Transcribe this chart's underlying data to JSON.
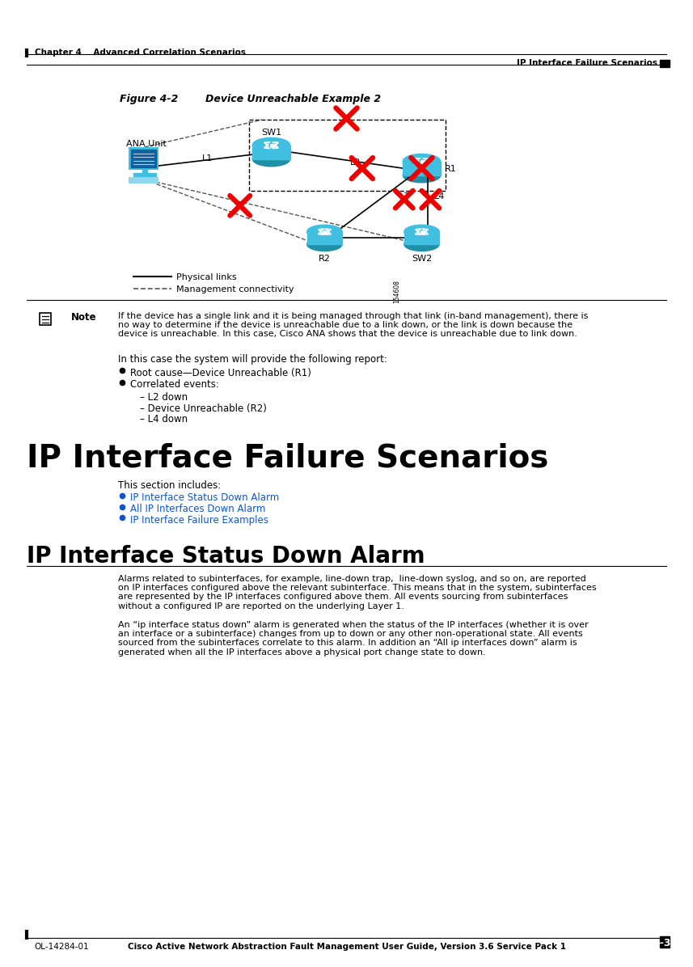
{
  "page_title_left": "Chapter 4    Advanced Correlation Scenarios",
  "page_title_right": "IP Interface Failure Scenarios",
  "figure_label": "Figure 4-2",
  "figure_title": "Device Unreachable Example 2",
  "figure_number": "154608",
  "note_text_lines": [
    "If the device has a single link and it is being managed through that link (in-band management), there is",
    "no way to determine if the device is unreachable due to a link down, or the link is down because the",
    "device is unreachable. In this case, Cisco ANA shows that the device is unreachable due to link down."
  ],
  "body_para1": "In this case the system will provide the following report:",
  "bullets_top": [
    "Root cause—Device Unreachable (R1)",
    "Correlated events:"
  ],
  "sub_bullets": [
    "L2 down",
    "Device Unreachable (R2)",
    "L4 down"
  ],
  "section_title": "IP Interface Failure Scenarios",
  "section_intro": "This section includes:",
  "section_links": [
    "IP Interface Status Down Alarm",
    "All IP Interfaces Down Alarm",
    "IP Interface Failure Examples"
  ],
  "subsection_title": "IP Interface Status Down Alarm",
  "subsection_para1_lines": [
    "Alarms related to subinterfaces, for example, line-down trap,  line-down syslog, and so on, are reported",
    "on IP interfaces configured above the relevant subinterface. This means that in the system, subinterfaces",
    "are represented by the IP interfaces configured above them. All events sourcing from subinterfaces",
    "without a configured IP are reported on the underlying Layer 1."
  ],
  "subsection_para2_lines": [
    "An “ip interface status down” alarm is generated when the status of the IP interfaces (whether it is over",
    "an interface or a subinterface) changes from up to down or any other non-operational state. All events",
    "sourced from the subinterfaces correlate to this alarm. In addition an “All ip interfaces down” alarm is",
    "generated when all the IP interfaces above a physical port change state to down."
  ],
  "footer_center": "Cisco Active Network Abstraction Fault Management User Guide, Version 3.6 Service Pack 1",
  "footer_left": "OL-14284-01",
  "footer_right": "4-3",
  "link_color": "#1155CC",
  "bg_color": "#ffffff",
  "text_color": "#000000",
  "cyan_color": "#41BFE0",
  "cyan_dark": "#2090A8",
  "red_color": "#EE0000"
}
